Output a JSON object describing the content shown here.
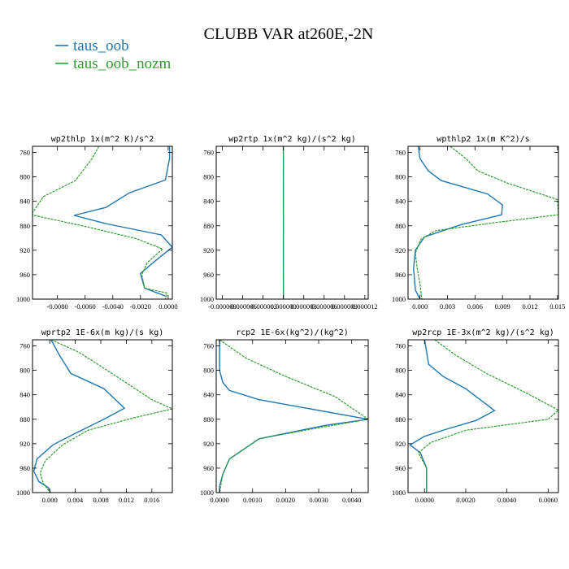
{
  "figure": {
    "title": "CLUBB VAR at260E,-2N",
    "legend": [
      {
        "name": "taus_oob",
        "color": "#1f77b4"
      },
      {
        "name": "taus_oob_nozm",
        "color": "#2ca02c"
      }
    ]
  },
  "chart_data": [
    {
      "type": "line",
      "title": "wp2thlp  1x(m^2 K)/s^2",
      "xlim": [
        -0.0098,
        0.0003
      ],
      "ylim": [
        1000,
        750
      ],
      "xticks": [
        -0.008,
        -0.006,
        -0.004,
        -0.002,
        0.0
      ],
      "xtick_labels": [
        "-0.0080",
        "-0.0060",
        "-0.0040",
        "-0.0020",
        "0.0000"
      ],
      "yticks": [
        760,
        800,
        840,
        880,
        920,
        960,
        1000
      ],
      "ytick_labels": [
        "760",
        "800",
        "840",
        "880",
        "920",
        "960",
        "1000"
      ],
      "series": [
        {
          "name": "taus_oob",
          "color": "#1f77b4",
          "x": [
            0.0001,
            0.0001,
            -0.0002,
            -0.0028,
            -0.0045,
            -0.0068,
            -0.0044,
            -0.0005,
            0.0003,
            -0.0008,
            -0.002,
            -0.0017,
            -0.0002
          ],
          "y": [
            750,
            770,
            805,
            826,
            850,
            863,
            877,
            895,
            915,
            935,
            958,
            982,
            995
          ]
        },
        {
          "name": "taus_oob_nozm",
          "color": "#2ca02c",
          "x": [
            -0.005,
            -0.0055,
            -0.0067,
            -0.009,
            -0.0099,
            -0.006,
            -0.0023,
            -0.0004,
            -0.0015,
            -0.0019,
            -0.0017,
            -0.0001,
            -0.0002
          ],
          "y": [
            750,
            770,
            806,
            832,
            862,
            881,
            901,
            918,
            940,
            960,
            982,
            990,
            1000
          ]
        }
      ]
    },
    {
      "type": "line",
      "title": "wp2rtp  1x(m^2 kg)/(s^2 kg)",
      "xlim": [
        -9.9e-06,
        1.25e-05
      ],
      "ylim": [
        1000,
        750
      ],
      "xticks": [
        -9e-06,
        -6e-06,
        -3e-06,
        0.0,
        3e-06,
        6e-06,
        9e-06,
        1.2e-05
      ],
      "xtick_labels": [
        "-0.000009",
        "-0.000006",
        "-0.000003",
        "0.000000",
        "0.000003",
        "0.000006",
        "0.000009",
        "0.000012"
      ],
      "yticks": [
        760,
        800,
        840,
        880,
        920,
        960,
        1000
      ],
      "ytick_labels": [
        "760",
        "800",
        "840",
        "880",
        "920",
        "960",
        "1000"
      ],
      "series": [
        {
          "name": "taus_oob",
          "color": "#1f77b4",
          "x": [
            0.0,
            0.0,
            0.0,
            0.0,
            0.0,
            0.0,
            0.0,
            0.0,
            0.0,
            0.0,
            0.0,
            0.0,
            0.0
          ],
          "y": [
            750,
            775,
            805,
            826,
            845,
            866,
            878,
            896,
            912,
            935,
            958,
            985,
            1000
          ]
        },
        {
          "name": "taus_oob_nozm",
          "color": "#2ca02c",
          "x": [
            0.0,
            0.0,
            0.0,
            0.0,
            0.0,
            0.0,
            0.0,
            0.0,
            0.0,
            0.0,
            0.0,
            0.0,
            0.0
          ],
          "y": [
            750,
            775,
            808,
            840,
            866,
            880,
            893,
            912,
            930,
            956,
            985,
            990,
            1000
          ]
        }
      ]
    },
    {
      "type": "line",
      "title": "wpthlp2  1x(m K^2)/s",
      "xlim": [
        -0.0013,
        0.0151
      ],
      "ylim": [
        1000,
        750
      ],
      "xticks": [
        0.0,
        0.003,
        0.006,
        0.009,
        0.012,
        0.015
      ],
      "xtick_labels": [
        "0.000",
        "0.003",
        "0.006",
        "0.009",
        "0.012",
        "0.015"
      ],
      "yticks": [
        760,
        800,
        840,
        880,
        920,
        960,
        1000
      ],
      "ytick_labels": [
        "760",
        "800",
        "840",
        "880",
        "920",
        "960",
        "1000"
      ],
      "series": [
        {
          "name": "taus_oob",
          "color": "#1f77b4",
          "x": [
            -0.0002,
            0.0,
            0.0009,
            0.0023,
            0.0074,
            0.009,
            0.0089,
            0.0045,
            0.0005,
            -0.0005,
            -0.0007,
            -0.0005,
            0.0
          ],
          "y": [
            750,
            770,
            790,
            806,
            828,
            846,
            862,
            878,
            898,
            920,
            950,
            985,
            1000
          ]
        },
        {
          "name": "taus_oob_nozm",
          "color": "#2ca02c",
          "x": [
            0.0033,
            0.005,
            0.0063,
            0.0095,
            0.015,
            0.0151,
            0.0081,
            0.0017,
            0.0001,
            -0.0005,
            -0.0003,
            0.0,
            0.0002
          ],
          "y": [
            750,
            770,
            790,
            810,
            837,
            862,
            875,
            888,
            902,
            925,
            950,
            975,
            1000
          ]
        }
      ]
    },
    {
      "type": "line",
      "title": "wprtp2  1E-6x(m kg)/(s kg)",
      "xlim": [
        -0.0027,
        0.0192
      ],
      "ylim": [
        1000,
        750
      ],
      "xticks": [
        0.0,
        0.004,
        0.008,
        0.012,
        0.016
      ],
      "xtick_labels": [
        "0.000",
        "0.004",
        "0.008",
        "0.012",
        "0.016"
      ],
      "yticks": [
        760,
        800,
        840,
        880,
        920,
        960,
        1000
      ],
      "ytick_labels": [
        "760",
        "800",
        "840",
        "880",
        "920",
        "960",
        "1000"
      ],
      "series": [
        {
          "name": "taus_oob",
          "color": "#1f77b4",
          "x": [
            0.0002,
            0.0015,
            0.0033,
            0.0085,
            0.0117,
            0.0083,
            0.004,
            0.0005,
            -0.002,
            -0.0025,
            -0.0017,
            -0.0002,
            0.0001
          ],
          "y": [
            750,
            775,
            805,
            830,
            862,
            881,
            903,
            922,
            945,
            965,
            982,
            992,
            1000
          ]
        },
        {
          "name": "taus_oob_nozm",
          "color": "#2ca02c",
          "x": [
            0.0002,
            0.0045,
            0.009,
            0.016,
            0.0192,
            0.013,
            0.006,
            0.002,
            -0.0007,
            -0.0015,
            -0.001,
            -0.0003,
            0.0001
          ],
          "y": [
            750,
            770,
            800,
            848,
            863,
            878,
            898,
            922,
            948,
            968,
            985,
            995,
            1000
          ]
        }
      ]
    },
    {
      "type": "line",
      "title": "rcp2  1E-6x(kg^2)/(kg^2)",
      "xlim": [
        -0.0001,
        0.0045
      ],
      "ylim": [
        1000,
        750
      ],
      "xticks": [
        0.0,
        0.001,
        0.002,
        0.003,
        0.004
      ],
      "xtick_labels": [
        "0.0000",
        "0.0010",
        "0.0020",
        "0.0030",
        "0.0040"
      ],
      "yticks": [
        760,
        800,
        840,
        880,
        920,
        960,
        1000
      ],
      "ytick_labels": [
        "760",
        "800",
        "840",
        "880",
        "920",
        "960",
        "1000"
      ],
      "series": [
        {
          "name": "taus_oob",
          "color": "#1f77b4",
          "x": [
            0.0,
            0.0,
            0.0001,
            0.0003,
            0.0012,
            0.0045,
            0.0032,
            0.0012,
            0.0003,
            0.0001,
            0.0,
            0.0
          ],
          "y": [
            750,
            800,
            820,
            833,
            848,
            880,
            890,
            912,
            945,
            970,
            990,
            1000
          ]
        },
        {
          "name": "taus_oob_nozm",
          "color": "#2ca02c",
          "x": [
            0.0,
            0.0008,
            0.002,
            0.0035,
            0.0045,
            0.0029,
            0.0012,
            0.0003,
            0.0001,
            0.0
          ],
          "y": [
            750,
            780,
            810,
            843,
            880,
            895,
            912,
            945,
            970,
            1000
          ]
        }
      ]
    },
    {
      "type": "line",
      "title": "wp2rcp  1E-3x(m^2 kg)/(s^2 kg)",
      "xlim": [
        -0.0008,
        0.0065
      ],
      "ylim": [
        1000,
        750
      ],
      "xticks": [
        0.0,
        0.002,
        0.004,
        0.006
      ],
      "xtick_labels": [
        "0.0000",
        "0.0020",
        "0.0040",
        "0.0060"
      ],
      "yticks": [
        760,
        800,
        840,
        880,
        920,
        960,
        1000
      ],
      "ytick_labels": [
        "760",
        "800",
        "840",
        "880",
        "920",
        "960",
        "1000"
      ],
      "series": [
        {
          "name": "taus_oob",
          "color": "#1f77b4",
          "x": [
            0.0,
            0.0002,
            0.0009,
            0.002,
            0.0034,
            0.0025,
            0.001,
            0.0,
            -0.0007,
            -0.0002,
            0.0001,
            0.0001
          ],
          "y": [
            750,
            790,
            810,
            830,
            866,
            882,
            897,
            908,
            922,
            935,
            960,
            1000
          ]
        },
        {
          "name": "taus_oob_nozm",
          "color": "#2ca02c",
          "x": [
            0.0005,
            0.0015,
            0.003,
            0.005,
            0.0065,
            0.006,
            0.002,
            0.0003,
            -0.0003,
            0.0001,
            0.0001
          ],
          "y": [
            750,
            775,
            805,
            838,
            865,
            880,
            898,
            918,
            935,
            960,
            1000
          ]
        }
      ]
    }
  ]
}
